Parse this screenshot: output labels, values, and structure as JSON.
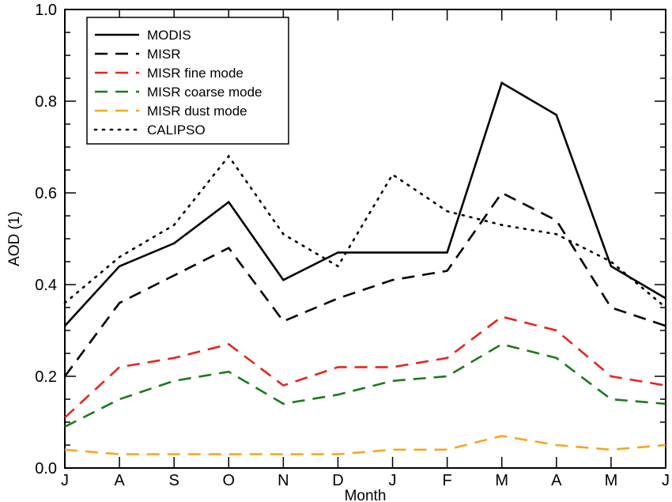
{
  "chart_data": {
    "type": "line",
    "title": "",
    "xlabel": "Month",
    "ylabel": "AOD (1)",
    "categories": [
      "J",
      "A",
      "S",
      "O",
      "N",
      "D",
      "J",
      "F",
      "M",
      "A",
      "M",
      "J"
    ],
    "ylim": [
      0.0,
      1.0
    ],
    "yticks": [
      "0.0",
      "0.2",
      "0.4",
      "0.6",
      "0.8",
      "1.0"
    ],
    "grid": false,
    "legend_position": "top-left",
    "series": [
      {
        "name": "MODIS",
        "color": "#000000",
        "style": "solid",
        "values": [
          0.31,
          0.44,
          0.49,
          0.58,
          0.41,
          0.47,
          0.47,
          0.47,
          0.84,
          0.77,
          0.44,
          0.37
        ]
      },
      {
        "name": "MISR",
        "color": "#000000",
        "style": "dashed",
        "values": [
          0.2,
          0.36,
          0.42,
          0.48,
          0.32,
          0.37,
          0.41,
          0.43,
          0.6,
          0.54,
          0.35,
          0.31
        ]
      },
      {
        "name": "MISR fine mode",
        "color": "#e8231f",
        "style": "dashed",
        "values": [
          0.11,
          0.22,
          0.24,
          0.27,
          0.18,
          0.22,
          0.22,
          0.24,
          0.33,
          0.3,
          0.2,
          0.18
        ]
      },
      {
        "name": "MISR coarse mode",
        "color": "#1a7a1a",
        "style": "dashed",
        "values": [
          0.09,
          0.15,
          0.19,
          0.21,
          0.14,
          0.16,
          0.19,
          0.2,
          0.27,
          0.24,
          0.15,
          0.14
        ]
      },
      {
        "name": "MISR dust mode",
        "color": "#f5a623",
        "style": "dashed",
        "values": [
          0.04,
          0.03,
          0.03,
          0.03,
          0.03,
          0.03,
          0.04,
          0.04,
          0.07,
          0.05,
          0.04,
          0.05
        ]
      },
      {
        "name": "CALIPSO",
        "color": "#000000",
        "style": "dotted",
        "values": [
          0.36,
          0.46,
          0.53,
          0.68,
          0.51,
          0.44,
          0.64,
          0.56,
          0.53,
          0.51,
          0.45,
          0.35
        ]
      }
    ]
  }
}
